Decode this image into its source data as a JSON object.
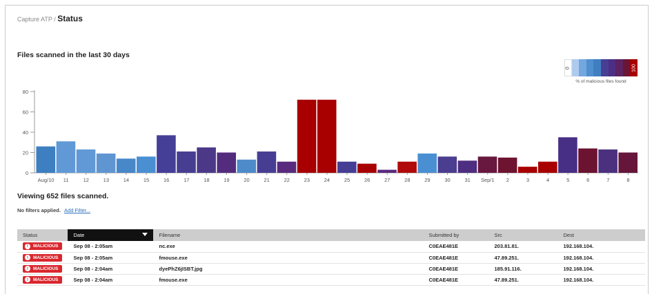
{
  "breadcrumb": {
    "parent": "Capture ATP /",
    "current": "Status"
  },
  "chart": {
    "title": "Files scanned in the last 30 days"
  },
  "legend": {
    "min_label": "0",
    "max_label": "100",
    "caption": "% of malicious files found",
    "colors": [
      "#ffffff",
      "#aecbee",
      "#74a7dd",
      "#4f8fd0",
      "#3e7ec1",
      "#483f95",
      "#4d2e85",
      "#5d2260",
      "#6a1436",
      "#a80000"
    ]
  },
  "chart_data": {
    "type": "bar",
    "categories": [
      "Aug/10",
      "11",
      "12",
      "13",
      "14",
      "15",
      "16",
      "17",
      "18",
      "19",
      "20",
      "21",
      "22",
      "23",
      "24",
      "25",
      "26",
      "27",
      "28",
      "29",
      "30",
      "31",
      "Sep/1",
      "2",
      "3",
      "4",
      "5",
      "6",
      "7",
      "8"
    ],
    "values": [
      26,
      31,
      23,
      19,
      14,
      16,
      37,
      21,
      25,
      20,
      13,
      21,
      11,
      72,
      72,
      11,
      9,
      3,
      11,
      19,
      16,
      12,
      16,
      15,
      6,
      11,
      35,
      24,
      23,
      20
    ],
    "colors": [
      "#3d7fc0",
      "#6199d6",
      "#6199d6",
      "#5f96d2",
      "#4887c8",
      "#4a8fd2",
      "#463f98",
      "#473e92",
      "#4b3988",
      "#542c7e",
      "#4e8bca",
      "#473e93",
      "#5a2a7e",
      "#a80000",
      "#a80000",
      "#463d95",
      "#a80000",
      "#5a2a7e",
      "#b00a0a",
      "#4a8fd2",
      "#4b3d8f",
      "#4d2e80",
      "#68183f",
      "#6e1330",
      "#a80000",
      "#a80000",
      "#472f85",
      "#6b1330",
      "#4b307f",
      "#66163b"
    ],
    "yticks": [
      0,
      20,
      40,
      60,
      80
    ],
    "ylim": [
      0,
      80
    ]
  },
  "viewing": "Viewing 652 files scanned.",
  "filters": {
    "label": "No filters applied.",
    "link": "Add Filter..."
  },
  "table": {
    "headers": [
      "Status",
      "Date",
      "Filename",
      "Submitted by",
      "Src",
      "Dest"
    ],
    "rows": [
      {
        "status": "MALICIOUS",
        "date": "Sep 08 - 2:05am",
        "filename": "nc.exe",
        "submitted_by": "C0EAE481E",
        "src": "203.81.81.",
        "dest": "192.168.104."
      },
      {
        "status": "MALICIOUS",
        "date": "Sep 08 - 2:05am",
        "filename": "fmouse.exe",
        "submitted_by": "C0EAE481E",
        "src": "47.89.251.",
        "dest": "192.168.104."
      },
      {
        "status": "MALICIOUS",
        "date": "Sep 08 - 2:04am",
        "filename": "dyePhZ6jISBT.jpg",
        "submitted_by": "C0EAE481E",
        "src": "185.91.116.",
        "dest": "192.168.104."
      },
      {
        "status": "MALICIOUS",
        "date": "Sep 08 - 2:04am",
        "filename": "fmouse.exe",
        "submitted_by": "C0EAE481E",
        "src": "47.89.251.",
        "dest": "192.168.104."
      }
    ]
  }
}
